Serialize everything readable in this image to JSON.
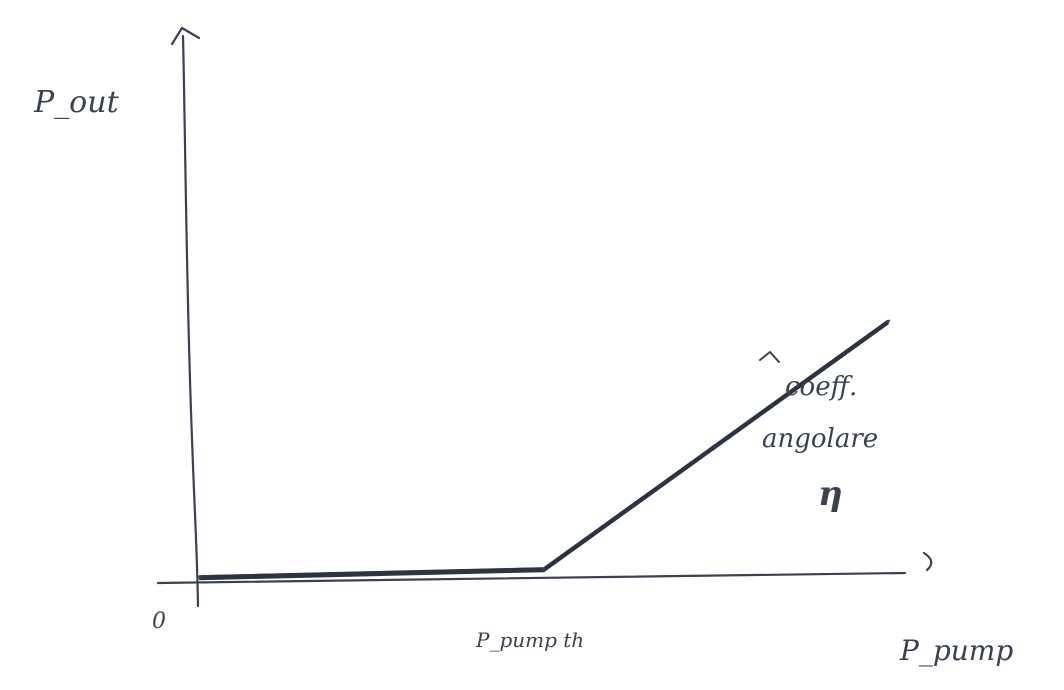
{
  "chart_data": {
    "type": "line",
    "ylabel": "P_out",
    "xlabel": "P_pump",
    "origin_label": "0",
    "threshold_label": "P_pump th",
    "slope_annotation": [
      "coeff.",
      "angolare",
      "η"
    ],
    "x": [
      0,
      1,
      2
    ],
    "y": [
      0,
      0.05,
      1.6
    ],
    "xlim": [
      0,
      2.05
    ],
    "ylim": [
      0,
      3.3
    ],
    "grid": false,
    "ink_color": "#3a4150"
  }
}
